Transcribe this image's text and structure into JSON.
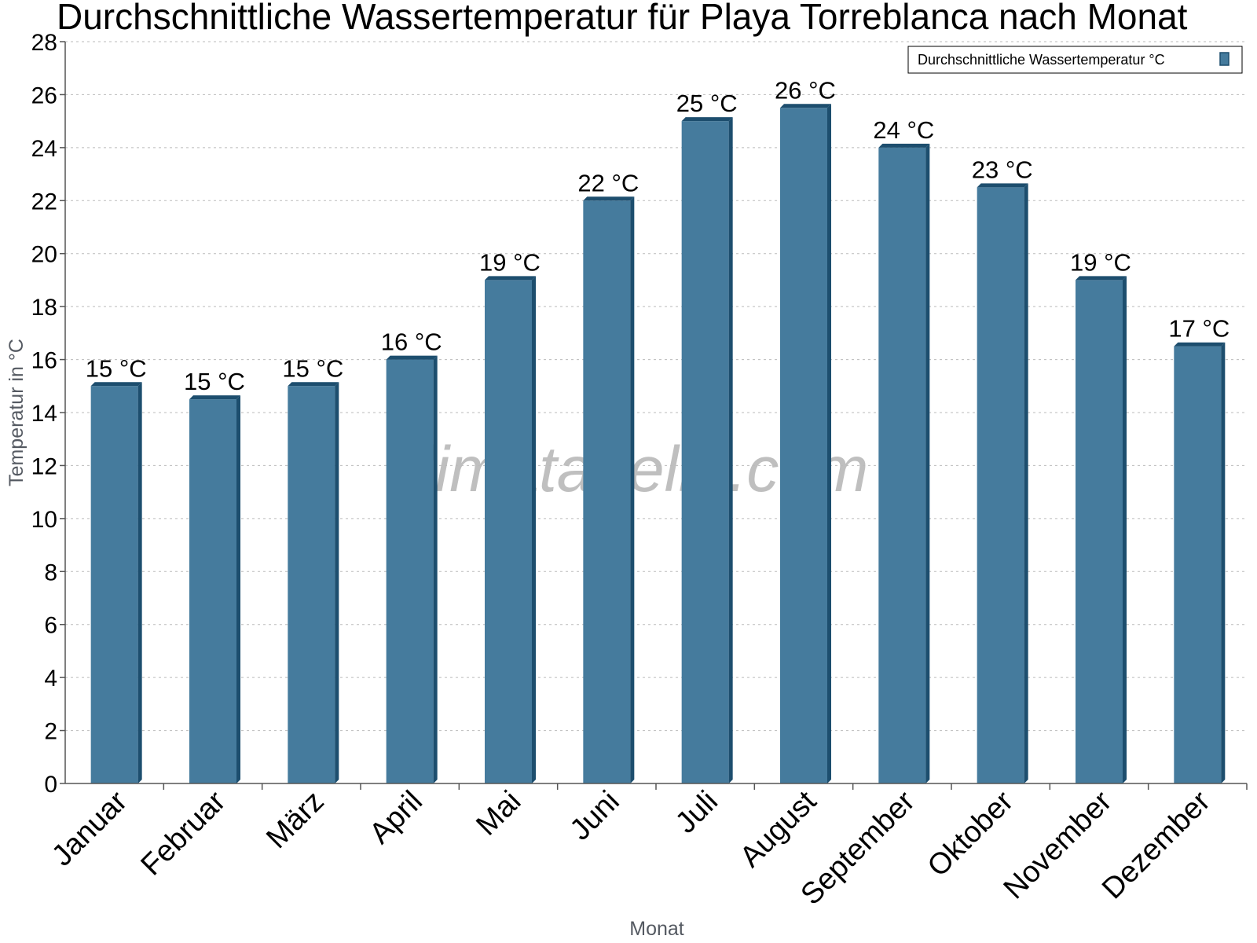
{
  "chart_data": {
    "type": "bar",
    "title": "Durchschnittliche Wassertemperatur für Playa Torreblanca nach Monat",
    "xlabel": "Monat",
    "ylabel": "Temperatur in °C",
    "ylim": [
      0,
      28
    ],
    "yticks": [
      0,
      2,
      4,
      6,
      8,
      10,
      12,
      14,
      16,
      18,
      20,
      22,
      24,
      26,
      28
    ],
    "grid": true,
    "legend_position": "top-right",
    "categories": [
      "Januar",
      "Februar",
      "März",
      "April",
      "Mai",
      "Juni",
      "Juli",
      "August",
      "September",
      "Oktober",
      "November",
      "Dezember"
    ],
    "series": [
      {
        "name": "Durchschnittliche Wassertemperatur °C",
        "values": [
          15,
          14.5,
          15,
          16,
          19,
          22,
          25,
          25.5,
          24,
          22.5,
          19,
          16.5
        ],
        "labels": [
          "15 °C",
          "15 °C",
          "15 °C",
          "16 °C",
          "19 °C",
          "22 °C",
          "25 °C",
          "26 °C",
          "24 °C",
          "23 °C",
          "19 °C",
          "17 °C"
        ],
        "color": "#457b9d",
        "shade_color": "#1d4e6e"
      }
    ],
    "watermark": "klimatabelle.com"
  }
}
